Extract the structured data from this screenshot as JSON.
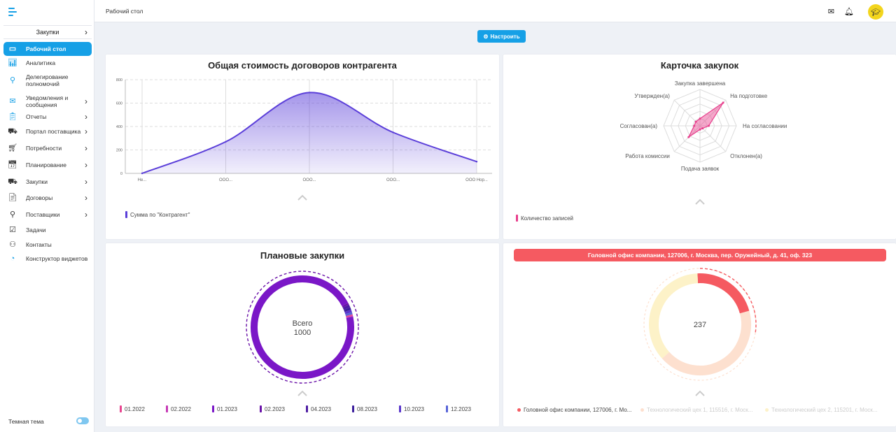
{
  "sidebar": {
    "section": "Закупки",
    "items": [
      {
        "label": "Рабочий стол",
        "icon": "monitor-icon",
        "active": true,
        "chevron": false
      },
      {
        "label": "Аналитика",
        "icon": "bar-chart-icon",
        "chevron": false
      },
      {
        "label": "Делегирование полномочий",
        "icon": "share-icon",
        "chevron": false
      },
      {
        "label": "Уведомления и сообщения",
        "icon": "envelope-icon",
        "chevron": true
      },
      {
        "label": "Отчеты",
        "icon": "clipboard-icon",
        "chevron": true
      },
      {
        "label": "Портал поставщика",
        "icon": "truck-icon",
        "chevron": true
      },
      {
        "label": "Потребности",
        "icon": "cart-icon",
        "chevron": true
      },
      {
        "label": "Планирование",
        "icon": "calendar-icon",
        "chevron": true
      },
      {
        "label": "Закупки",
        "icon": "delivery-truck-icon",
        "chevron": true
      },
      {
        "label": "Договоры",
        "icon": "document-icon",
        "chevron": true
      },
      {
        "label": "Поставщики",
        "icon": "location-pin-icon",
        "chevron": true
      },
      {
        "label": "Задачи",
        "icon": "checkbox-icon",
        "chevron": false
      },
      {
        "label": "Контакты",
        "icon": "user-icon",
        "chevron": false
      },
      {
        "label": "Конструктор виджетов",
        "icon": "pie-icon",
        "chevron": false
      }
    ],
    "theme_label": "Темная тема"
  },
  "header": {
    "breadcrumb": "Рабочий стол",
    "configure_label": "Настроить"
  },
  "widgets": {
    "contract_value": {
      "title": "Общая стоимость договоров контрагента",
      "legend": "Сумма по \"Контрагент\""
    },
    "procurement_card": {
      "title": "Карточка закупок",
      "legend": "Количество записей"
    },
    "planned": {
      "title": "Плановые закупки",
      "center_label": "Всего",
      "center_value": "1000"
    },
    "office": {
      "banner": "Головной офис компании, 127006, г. Москва, пер. Оружейный, д. 41, оф. 323",
      "center_value": "237"
    }
  },
  "chart_data": [
    {
      "type": "area",
      "title": "Общая стоимость договоров контрагента",
      "categories": [
        "Не...",
        "ООО...",
        "ООО...",
        "ООО...",
        "ООО Нор..."
      ],
      "series": [
        {
          "name": "Сумма по \"Контрагент\"",
          "values": [
            0,
            270,
            690,
            350,
            100
          ]
        }
      ],
      "yticks": [
        0,
        200,
        400,
        600,
        800
      ],
      "ylim": [
        0,
        800
      ],
      "grid": true,
      "color": "#5b3fd9"
    },
    {
      "type": "radar",
      "title": "Карточка закупок",
      "axes": [
        "Закупка завершена",
        "На подготовке",
        "На согласовании",
        "Отклонен(а)",
        "Подача заявок",
        "Работа комиссии",
        "Согласован(а)",
        "Утвержден(а)"
      ],
      "series": [
        {
          "name": "Количество записей",
          "values": [
            10,
            45,
            12,
            5,
            5,
            22,
            8,
            8
          ]
        }
      ],
      "rmax": 50,
      "color": "#e83e8c"
    },
    {
      "type": "donut",
      "title": "Плановые закупки",
      "total": 1000,
      "categories": [
        "01.2022",
        "02.2022",
        "01.2023",
        "02.2023",
        "04.2023",
        "08.2023",
        "10.2023",
        "12.2023"
      ],
      "values": [
        4,
        3,
        955,
        6,
        9,
        8,
        8,
        7
      ],
      "colors": [
        "#e8448f",
        "#c63ab6",
        "#7a17c7",
        "#6a12a8",
        "#4e1da3",
        "#3c1f9c",
        "#5a36cc",
        "#5864d8"
      ]
    },
    {
      "type": "donut",
      "total": 237,
      "categories": [
        "Головной офис компании, 127006, г. Мо...",
        "Технологический цех 1, 115516, г. Моск...",
        "Технологический цех 2, 115201, г. Моск..."
      ],
      "values": [
        51,
        101,
        85
      ],
      "colors": [
        "#f55a61",
        "#fde0cf",
        "#fdf2c8"
      ]
    }
  ]
}
